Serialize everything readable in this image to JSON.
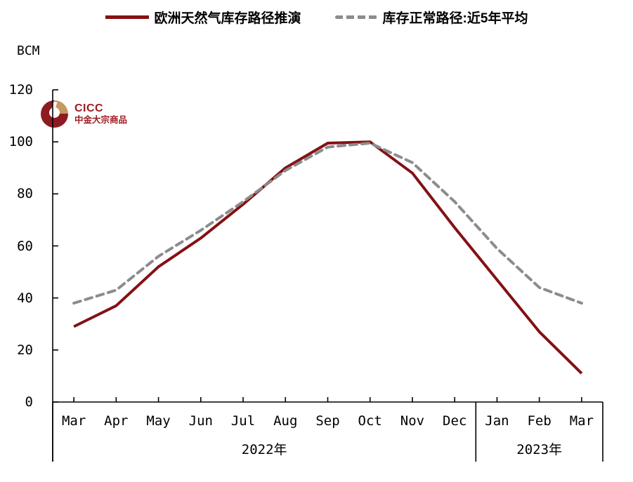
{
  "unit_label": "BCM",
  "logo": {
    "brand": "CICC",
    "subtitle": "中金大宗商品"
  },
  "legend": {
    "items": [
      {
        "label": "欧洲天然气库存路径推演",
        "style": "solid",
        "color": "#841114"
      },
      {
        "label": "库存正常路径:近5年平均",
        "style": "dashed",
        "color": "#8c8c8c"
      }
    ]
  },
  "chart_data": {
    "type": "line",
    "title": "",
    "xlabel": "",
    "ylabel": "BCM",
    "ylim": [
      0,
      120
    ],
    "yticks": [
      0,
      20,
      40,
      60,
      80,
      100,
      120
    ],
    "grid": false,
    "legend_position": "top-center",
    "x": [
      "Mar",
      "Apr",
      "May",
      "Jun",
      "Jul",
      "Aug",
      "Sep",
      "Oct",
      "Nov",
      "Dec",
      "Jan",
      "Feb",
      "Mar"
    ],
    "year_groups": [
      {
        "label": "2022年",
        "months": 10
      },
      {
        "label": "2023年",
        "months": 3
      }
    ],
    "series": [
      {
        "name": "欧洲天然气库存路径推演",
        "style": "solid",
        "color": "#841114",
        "values": [
          29,
          37,
          52,
          63,
          76,
          90,
          99.5,
          100,
          88,
          67,
          47,
          27,
          11
        ]
      },
      {
        "name": "库存正常路径:近5年平均",
        "style": "dashed",
        "color": "#8c8c8c",
        "values": [
          38,
          43,
          56,
          66,
          77,
          89,
          98,
          99.5,
          92,
          77,
          59,
          44,
          38
        ]
      }
    ]
  }
}
